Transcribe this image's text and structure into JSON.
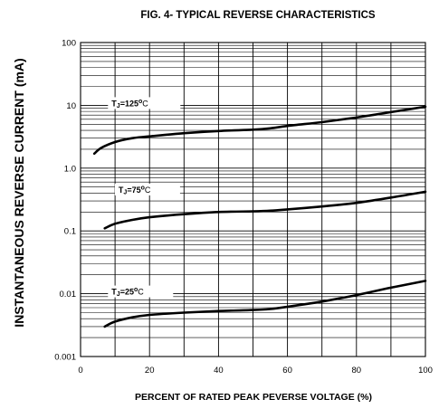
{
  "chart_data": {
    "type": "line",
    "title": "FIG. 4- TYPICAL REVERSE CHARACTERISTICS",
    "xlabel": "PERCENT OF RATED PEAK PEVERSE VOLTAGE (%)",
    "ylabel": "INSTANTANEOUS REVERSE CURRENT (mA)",
    "xlim": [
      0,
      100
    ],
    "ylim": [
      0.001,
      100
    ],
    "yscale": "log",
    "grid": true,
    "x_ticks": [
      {
        "value": 0,
        "label": "0"
      },
      {
        "value": 20,
        "label": "20"
      },
      {
        "value": 40,
        "label": "40"
      },
      {
        "value": 60,
        "label": "60"
      },
      {
        "value": 80,
        "label": "80"
      },
      {
        "value": 100,
        "label": "100"
      }
    ],
    "y_ticks": [
      {
        "value": 100,
        "label": "100"
      },
      {
        "value": 10,
        "label": "10"
      },
      {
        "value": 1,
        "label": "1.0"
      },
      {
        "value": 0.1,
        "label": "0.1"
      },
      {
        "value": 0.01,
        "label": "0.01"
      },
      {
        "value": 0.001,
        "label": "0.001"
      }
    ],
    "series": [
      {
        "name": "TJ=125°C",
        "label_parts": {
          "t": "T",
          "sub": "J",
          "eq": "=125",
          "deg": "o",
          "unit": "C"
        },
        "label_pos": [
          9,
          10
        ],
        "x": [
          4,
          6,
          10,
          15,
          20,
          30,
          40,
          50,
          55,
          60,
          70,
          80,
          90,
          100
        ],
        "y": [
          1.7,
          2.1,
          2.6,
          3.0,
          3.2,
          3.6,
          3.9,
          4.1,
          4.3,
          4.7,
          5.4,
          6.4,
          7.8,
          9.5
        ]
      },
      {
        "name": "TJ=75°C",
        "label_parts": {
          "t": "T",
          "sub": "J",
          "eq": "=75",
          "deg": "o",
          "unit": "C"
        },
        "label_pos": [
          11,
          0.42
        ],
        "x": [
          7,
          10,
          15,
          20,
          30,
          40,
          50,
          55,
          60,
          70,
          80,
          90,
          100
        ],
        "y": [
          0.11,
          0.13,
          0.15,
          0.165,
          0.185,
          0.2,
          0.205,
          0.21,
          0.22,
          0.245,
          0.28,
          0.34,
          0.42
        ]
      },
      {
        "name": "TJ=25°C",
        "label_parts": {
          "t": "T",
          "sub": "J",
          "eq": "=25",
          "deg": "o",
          "unit": "C"
        },
        "label_pos": [
          9,
          0.01
        ],
        "x": [
          7,
          10,
          15,
          20,
          30,
          40,
          50,
          55,
          60,
          70,
          80,
          90,
          100
        ],
        "y": [
          0.003,
          0.0036,
          0.0042,
          0.0046,
          0.005,
          0.0053,
          0.0055,
          0.0057,
          0.0062,
          0.0075,
          0.0095,
          0.0125,
          0.016
        ]
      }
    ]
  }
}
